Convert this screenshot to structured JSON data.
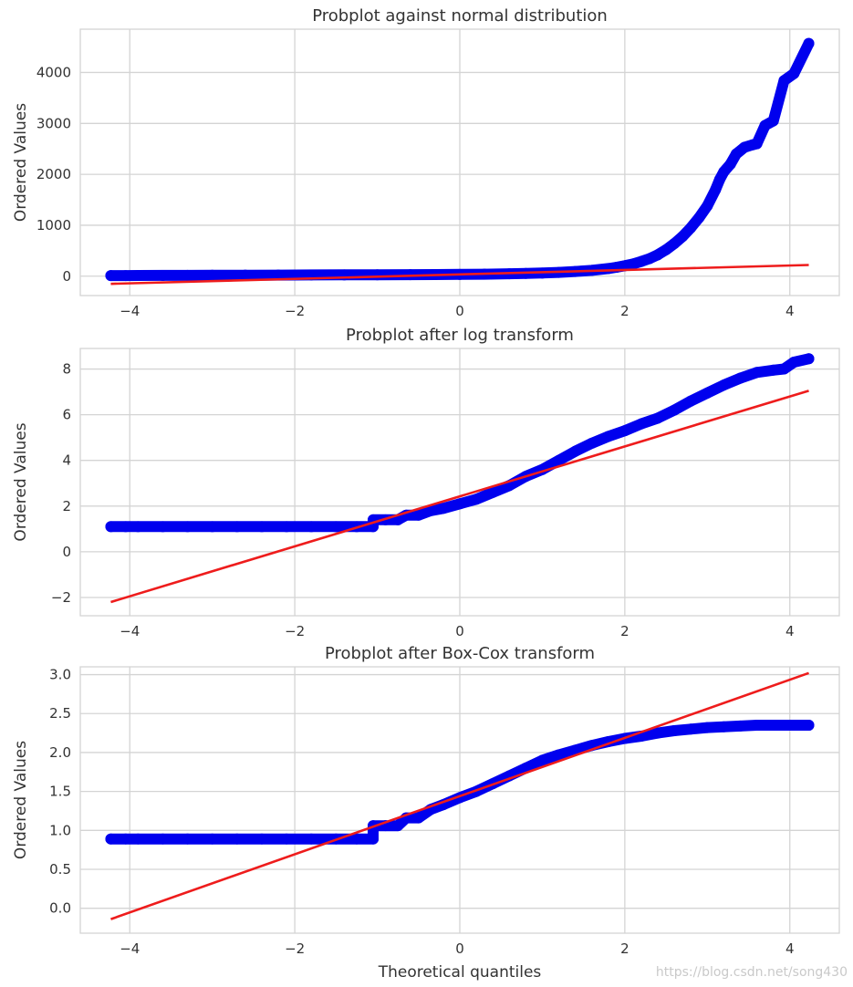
{
  "watermark": "https://blog.csdn.net/song430",
  "colors": {
    "points": "#0000ee",
    "fit_line": "#ee1c1c",
    "grid": "#d4d4d4",
    "text": "#333333"
  },
  "chart_data": [
    {
      "type": "scatter",
      "title": "Probplot against normal distribution",
      "xlabel": "",
      "ylabel": "Ordered Values",
      "xlim": [
        -4.6,
        4.6
      ],
      "ylim": [
        -380,
        4850
      ],
      "xticks": [
        -4,
        -2,
        0,
        2,
        4
      ],
      "xtick_labels": [
        "−4",
        "−2",
        "0",
        "2",
        "4"
      ],
      "yticks": [
        0,
        1000,
        2000,
        3000,
        4000
      ],
      "ytick_labels": [
        "0",
        "1000",
        "2000",
        "3000",
        "4000"
      ],
      "grid": true,
      "series": [
        {
          "kind": "points",
          "points": [
            [
              -4.23,
              12
            ],
            [
              -4.05,
              12
            ],
            [
              -3.9,
              14
            ],
            [
              -3.6,
              15
            ],
            [
              -3.3,
              16
            ],
            [
              -3.0,
              18
            ],
            [
              -2.6,
              20
            ],
            [
              -2.2,
              22
            ],
            [
              -1.8,
              24
            ],
            [
              -1.4,
              26
            ],
            [
              -1.0,
              28
            ],
            [
              -0.6,
              30
            ],
            [
              -0.3,
              32
            ],
            [
              0.0,
              35
            ],
            [
              0.3,
              40
            ],
            [
              0.6,
              48
            ],
            [
              0.8,
              55
            ],
            [
              1.0,
              62
            ],
            [
              1.2,
              75
            ],
            [
              1.4,
              92
            ],
            [
              1.6,
              115
            ],
            [
              1.8,
              150
            ],
            [
              1.9,
              175
            ],
            [
              2.0,
              205
            ],
            [
              2.1,
              240
            ],
            [
              2.2,
              290
            ],
            [
              2.3,
              345
            ],
            [
              2.4,
              420
            ],
            [
              2.5,
              520
            ],
            [
              2.6,
              640
            ],
            [
              2.7,
              780
            ],
            [
              2.8,
              950
            ],
            [
              2.9,
              1150
            ],
            [
              3.0,
              1380
            ],
            [
              3.1,
              1700
            ],
            [
              3.15,
              1900
            ],
            [
              3.2,
              2050
            ],
            [
              3.28,
              2200
            ],
            [
              3.35,
              2400
            ],
            [
              3.45,
              2530
            ],
            [
              3.55,
              2580
            ],
            [
              3.6,
              2600
            ],
            [
              3.7,
              2960
            ],
            [
              3.8,
              3050
            ],
            [
              3.93,
              3840
            ],
            [
              4.05,
              3980
            ],
            [
              4.23,
              4570
            ]
          ]
        },
        {
          "kind": "line",
          "points": [
            [
              -4.23,
              -150
            ],
            [
              4.23,
              220
            ]
          ]
        }
      ]
    },
    {
      "type": "scatter",
      "title": "Probplot after log transform",
      "xlabel": "",
      "ylabel": "Ordered Values",
      "xlim": [
        -4.6,
        4.6
      ],
      "ylim": [
        -2.8,
        8.9
      ],
      "xticks": [
        -4,
        -2,
        0,
        2,
        4
      ],
      "xtick_labels": [
        "−4",
        "−2",
        "0",
        "2",
        "4"
      ],
      "yticks": [
        -2,
        0,
        2,
        4,
        6,
        8
      ],
      "ytick_labels": [
        "−2",
        "0",
        "2",
        "4",
        "6",
        "8"
      ],
      "grid": true,
      "series": [
        {
          "kind": "points",
          "points": [
            [
              -4.23,
              1.1
            ],
            [
              -4.05,
              1.1
            ],
            [
              -3.9,
              1.1
            ],
            [
              -3.6,
              1.1
            ],
            [
              -3.3,
              1.1
            ],
            [
              -3.0,
              1.1
            ],
            [
              -2.7,
              1.1
            ],
            [
              -2.4,
              1.1
            ],
            [
              -2.1,
              1.1
            ],
            [
              -1.8,
              1.1
            ],
            [
              -1.5,
              1.1
            ],
            [
              -1.25,
              1.1
            ],
            [
              -1.05,
              1.1
            ],
            [
              -1.05,
              1.4
            ],
            [
              -0.9,
              1.4
            ],
            [
              -0.75,
              1.4
            ],
            [
              -0.65,
              1.6
            ],
            [
              -0.5,
              1.6
            ],
            [
              -0.35,
              1.8
            ],
            [
              -0.2,
              1.9
            ],
            [
              0.0,
              2.1
            ],
            [
              0.2,
              2.3
            ],
            [
              0.4,
              2.6
            ],
            [
              0.6,
              2.9
            ],
            [
              0.8,
              3.3
            ],
            [
              1.0,
              3.6
            ],
            [
              1.2,
              4.0
            ],
            [
              1.4,
              4.4
            ],
            [
              1.6,
              4.75
            ],
            [
              1.8,
              5.05
            ],
            [
              2.0,
              5.3
            ],
            [
              2.2,
              5.6
            ],
            [
              2.4,
              5.85
            ],
            [
              2.6,
              6.2
            ],
            [
              2.8,
              6.6
            ],
            [
              3.0,
              6.95
            ],
            [
              3.2,
              7.3
            ],
            [
              3.4,
              7.6
            ],
            [
              3.6,
              7.85
            ],
            [
              3.8,
              7.95
            ],
            [
              3.93,
              8.0
            ],
            [
              4.05,
              8.3
            ],
            [
              4.23,
              8.45
            ]
          ]
        },
        {
          "kind": "line",
          "points": [
            [
              -4.23,
              -2.2
            ],
            [
              4.23,
              7.05
            ]
          ]
        }
      ]
    },
    {
      "type": "scatter",
      "title": "Probplot after Box-Cox transform",
      "xlabel": "Theoretical quantiles",
      "ylabel": "Ordered Values",
      "xlim": [
        -4.6,
        4.6
      ],
      "ylim": [
        -0.32,
        3.1
      ],
      "xticks": [
        -4,
        -2,
        0,
        2,
        4
      ],
      "xtick_labels": [
        "−4",
        "−2",
        "0",
        "2",
        "4"
      ],
      "yticks": [
        0.0,
        0.5,
        1.0,
        1.5,
        2.0,
        2.5,
        3.0
      ],
      "ytick_labels": [
        "0.0",
        "0.5",
        "1.0",
        "1.5",
        "2.0",
        "2.5",
        "3.0"
      ],
      "grid": true,
      "series": [
        {
          "kind": "points",
          "points": [
            [
              -4.23,
              0.89
            ],
            [
              -4.05,
              0.89
            ],
            [
              -3.9,
              0.89
            ],
            [
              -3.6,
              0.89
            ],
            [
              -3.3,
              0.89
            ],
            [
              -3.0,
              0.89
            ],
            [
              -2.7,
              0.89
            ],
            [
              -2.4,
              0.89
            ],
            [
              -2.1,
              0.89
            ],
            [
              -1.8,
              0.89
            ],
            [
              -1.5,
              0.89
            ],
            [
              -1.25,
              0.89
            ],
            [
              -1.05,
              0.89
            ],
            [
              -1.05,
              1.06
            ],
            [
              -0.9,
              1.06
            ],
            [
              -0.75,
              1.06
            ],
            [
              -0.65,
              1.16
            ],
            [
              -0.5,
              1.16
            ],
            [
              -0.35,
              1.27
            ],
            [
              -0.2,
              1.33
            ],
            [
              0.0,
              1.42
            ],
            [
              0.2,
              1.5
            ],
            [
              0.4,
              1.6
            ],
            [
              0.6,
              1.7
            ],
            [
              0.8,
              1.8
            ],
            [
              1.0,
              1.9
            ],
            [
              1.2,
              1.97
            ],
            [
              1.4,
              2.03
            ],
            [
              1.6,
              2.09
            ],
            [
              1.8,
              2.14
            ],
            [
              2.0,
              2.18
            ],
            [
              2.2,
              2.21
            ],
            [
              2.4,
              2.25
            ],
            [
              2.6,
              2.28
            ],
            [
              2.8,
              2.3
            ],
            [
              3.0,
              2.32
            ],
            [
              3.2,
              2.33
            ],
            [
              3.4,
              2.34
            ],
            [
              3.6,
              2.35
            ],
            [
              3.8,
              2.35
            ],
            [
              3.93,
              2.35
            ],
            [
              4.05,
              2.35
            ],
            [
              4.23,
              2.35
            ]
          ]
        },
        {
          "kind": "line",
          "points": [
            [
              -4.23,
              -0.14
            ],
            [
              4.23,
              3.02
            ]
          ]
        }
      ]
    }
  ]
}
